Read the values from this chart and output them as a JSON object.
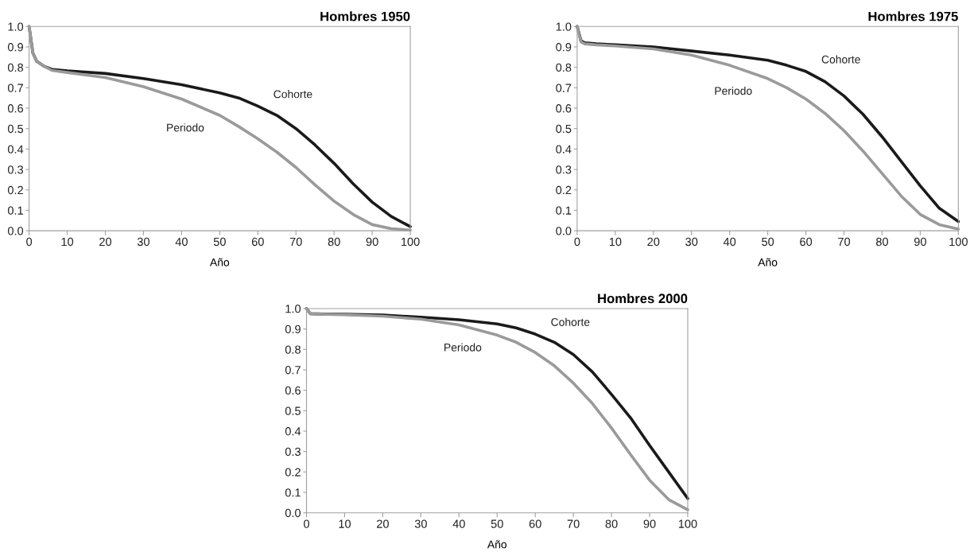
{
  "chart_data": [
    {
      "type": "line",
      "title": "Hombres 1950",
      "xlabel": "Año",
      "xlim": [
        0,
        100
      ],
      "xticks": [
        0,
        10,
        20,
        30,
        40,
        50,
        60,
        70,
        80,
        90,
        100
      ],
      "ylim": [
        0,
        1
      ],
      "yticks": [
        {
          "value": 0,
          "label": "0.0"
        },
        {
          "value": 0.1,
          "label": "0.1"
        },
        {
          "value": 0.2,
          "label": "0.2"
        },
        {
          "value": 0.3,
          "label": "0.3"
        },
        {
          "value": 0.4,
          "label": "0.4"
        },
        {
          "value": 0.5,
          "label": "0.5"
        },
        {
          "value": 0.6,
          "label": "0.6"
        },
        {
          "value": 0.7,
          "label": "0.7"
        },
        {
          "value": 0.8,
          "label": "0.8"
        },
        {
          "value": 0.9,
          "label": "0.9"
        },
        {
          "value": 1,
          "label": "1.0"
        }
      ],
      "grid": false,
      "legend": false,
      "marker": "none",
      "line_style": "solid",
      "x": [
        0,
        1,
        2,
        4,
        6,
        10,
        20,
        30,
        40,
        50,
        55,
        60,
        65,
        70,
        75,
        80,
        85,
        90,
        95,
        100
      ],
      "series": [
        {
          "name": "Cohorte",
          "color": "#1a1a1a",
          "values": [
            1.0,
            0.87,
            0.83,
            0.805,
            0.79,
            0.783,
            0.77,
            0.745,
            0.715,
            0.675,
            0.65,
            0.61,
            0.565,
            0.5,
            0.42,
            0.33,
            0.23,
            0.14,
            0.07,
            0.02
          ]
        },
        {
          "name": "Periodo",
          "color": "#9a9a9a",
          "values": [
            1.0,
            0.87,
            0.83,
            0.805,
            0.785,
            0.775,
            0.75,
            0.705,
            0.645,
            0.565,
            0.51,
            0.45,
            0.385,
            0.31,
            0.225,
            0.145,
            0.08,
            0.03,
            0.01,
            0.003
          ]
        }
      ]
    },
    {
      "type": "line",
      "title": "Hombres 1975",
      "xlabel": "Año",
      "xlim": [
        0,
        100
      ],
      "xticks": [
        0,
        10,
        20,
        30,
        40,
        50,
        60,
        70,
        80,
        90,
        100
      ],
      "ylim": [
        0,
        1
      ],
      "yticks": [
        {
          "value": 0,
          "label": "0.0"
        },
        {
          "value": 0.1,
          "label": "0.1"
        },
        {
          "value": 0.2,
          "label": "0.2"
        },
        {
          "value": 0.3,
          "label": "0.3"
        },
        {
          "value": 0.4,
          "label": "0.4"
        },
        {
          "value": 0.5,
          "label": "0.5"
        },
        {
          "value": 0.6,
          "label": "0.6"
        },
        {
          "value": 0.7,
          "label": "0.7"
        },
        {
          "value": 0.8,
          "label": "0.8"
        },
        {
          "value": 0.9,
          "label": "0.9"
        },
        {
          "value": 1,
          "label": "1.0"
        }
      ],
      "grid": false,
      "legend": false,
      "marker": "none",
      "line_style": "solid",
      "x": [
        0,
        1,
        2,
        5,
        10,
        20,
        30,
        40,
        50,
        55,
        60,
        65,
        70,
        75,
        80,
        85,
        90,
        95,
        100
      ],
      "series": [
        {
          "name": "Cohorte",
          "color": "#1a1a1a",
          "values": [
            1.0,
            0.93,
            0.92,
            0.915,
            0.91,
            0.9,
            0.88,
            0.86,
            0.835,
            0.81,
            0.78,
            0.73,
            0.66,
            0.57,
            0.46,
            0.34,
            0.22,
            0.11,
            0.045
          ]
        },
        {
          "name": "Periodo",
          "color": "#9a9a9a",
          "values": [
            1.0,
            0.925,
            0.915,
            0.91,
            0.905,
            0.89,
            0.86,
            0.81,
            0.745,
            0.7,
            0.645,
            0.575,
            0.49,
            0.39,
            0.28,
            0.17,
            0.08,
            0.03,
            0.008
          ]
        }
      ]
    },
    {
      "type": "line",
      "title": "Hombres 2000",
      "xlabel": "Año",
      "xlim": [
        0,
        100
      ],
      "xticks": [
        0,
        10,
        20,
        30,
        40,
        50,
        60,
        70,
        80,
        90,
        100
      ],
      "ylim": [
        0,
        1
      ],
      "yticks": [
        {
          "value": 0,
          "label": "0.0"
        },
        {
          "value": 0.1,
          "label": "0.1"
        },
        {
          "value": 0.2,
          "label": "0.2"
        },
        {
          "value": 0.3,
          "label": "0.3"
        },
        {
          "value": 0.4,
          "label": "0.4"
        },
        {
          "value": 0.5,
          "label": "0.5"
        },
        {
          "value": 0.6,
          "label": "0.6"
        },
        {
          "value": 0.7,
          "label": "0.7"
        },
        {
          "value": 0.8,
          "label": "0.8"
        },
        {
          "value": 0.9,
          "label": "0.9"
        },
        {
          "value": 1,
          "label": "1.0"
        }
      ],
      "grid": false,
      "legend": false,
      "marker": "none",
      "line_style": "solid",
      "x": [
        0,
        1,
        5,
        10,
        20,
        30,
        40,
        50,
        55,
        60,
        65,
        70,
        75,
        80,
        85,
        90,
        95,
        100
      ],
      "series": [
        {
          "name": "Cohorte",
          "color": "#1a1a1a",
          "values": [
            1.0,
            0.975,
            0.973,
            0.972,
            0.968,
            0.958,
            0.945,
            0.925,
            0.905,
            0.875,
            0.835,
            0.775,
            0.69,
            0.58,
            0.465,
            0.33,
            0.2,
            0.07
          ]
        },
        {
          "name": "Periodo",
          "color": "#9a9a9a",
          "values": [
            1.0,
            0.975,
            0.972,
            0.97,
            0.963,
            0.948,
            0.92,
            0.87,
            0.835,
            0.785,
            0.72,
            0.635,
            0.535,
            0.415,
            0.285,
            0.16,
            0.065,
            0.015
          ]
        }
      ]
    }
  ]
}
